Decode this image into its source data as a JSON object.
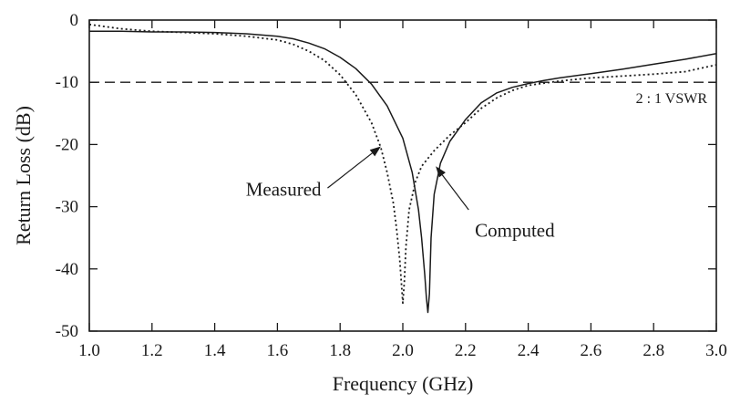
{
  "chart_data": {
    "type": "line",
    "title": "",
    "xlabel": "Frequency (GHz)",
    "ylabel": "Return Loss (dB)",
    "xlim": [
      1.0,
      3.0
    ],
    "ylim": [
      -50,
      0
    ],
    "x_ticks": [
      1.0,
      1.2,
      1.4,
      1.6,
      1.8,
      2.0,
      2.2,
      2.4,
      2.6,
      2.8,
      3.0
    ],
    "x_tick_labels": [
      "1.0",
      "1.2",
      "1.4",
      "1.6",
      "1.8",
      "2.0",
      "2.2",
      "2.4",
      "2.6",
      "2.8",
      "3.0"
    ],
    "y_ticks": [
      0,
      -10,
      -20,
      -30,
      -40,
      -50
    ],
    "y_tick_labels": [
      "0",
      "-10",
      "-20",
      "-30",
      "-40",
      "-50"
    ],
    "grid": false,
    "series": [
      {
        "name": "Computed",
        "style": "solid",
        "x": [
          1.0,
          1.1,
          1.2,
          1.3,
          1.4,
          1.5,
          1.6,
          1.65,
          1.7,
          1.75,
          1.8,
          1.85,
          1.9,
          1.95,
          2.0,
          2.03,
          2.05,
          2.06,
          2.07,
          2.075,
          2.08,
          2.085,
          2.09,
          2.1,
          2.12,
          2.15,
          2.2,
          2.25,
          2.3,
          2.35,
          2.4,
          2.45,
          2.5,
          2.6,
          2.7,
          2.8,
          2.9,
          3.0
        ],
        "y": [
          -1.8,
          -1.8,
          -1.9,
          -1.9,
          -2.0,
          -2.2,
          -2.6,
          -3.0,
          -3.7,
          -4.6,
          -6.0,
          -7.8,
          -10.3,
          -13.8,
          -19.0,
          -24.5,
          -30.5,
          -35.0,
          -41.0,
          -44.5,
          -47.0,
          -44.0,
          -35.0,
          -28.0,
          -23.0,
          -19.5,
          -16.0,
          -13.3,
          -11.7,
          -10.8,
          -10.2,
          -9.7,
          -9.3,
          -8.6,
          -7.9,
          -7.1,
          -6.3,
          -5.4
        ]
      },
      {
        "name": "Measured",
        "style": "dotted",
        "x": [
          1.0,
          1.1,
          1.2,
          1.3,
          1.4,
          1.5,
          1.6,
          1.65,
          1.7,
          1.75,
          1.8,
          1.85,
          1.9,
          1.93,
          1.95,
          1.97,
          1.98,
          1.99,
          1.995,
          2.0,
          2.005,
          2.01,
          2.02,
          2.04,
          2.06,
          2.1,
          2.15,
          2.2,
          2.25,
          2.3,
          2.35,
          2.4,
          2.5,
          2.6,
          2.7,
          2.8,
          2.9,
          3.0
        ],
        "y": [
          -0.7,
          -1.4,
          -1.8,
          -2.0,
          -2.2,
          -2.6,
          -3.2,
          -3.9,
          -5.0,
          -6.5,
          -8.8,
          -12.0,
          -16.5,
          -20.5,
          -24.5,
          -29.5,
          -33.5,
          -38.5,
          -42.0,
          -45.5,
          -42.0,
          -36.5,
          -30.5,
          -26.0,
          -23.5,
          -21.0,
          -18.5,
          -16.5,
          -14.2,
          -12.5,
          -11.3,
          -10.5,
          -9.8,
          -9.3,
          -9.0,
          -8.7,
          -8.3,
          -7.2
        ]
      }
    ],
    "reference_line": {
      "y": -10,
      "style": "dashed",
      "label": "2 : 1 VSWR"
    },
    "annotations": [
      {
        "text": "Measured",
        "target_series": "Measured"
      },
      {
        "text": "Computed",
        "target_series": "Computed"
      }
    ]
  }
}
